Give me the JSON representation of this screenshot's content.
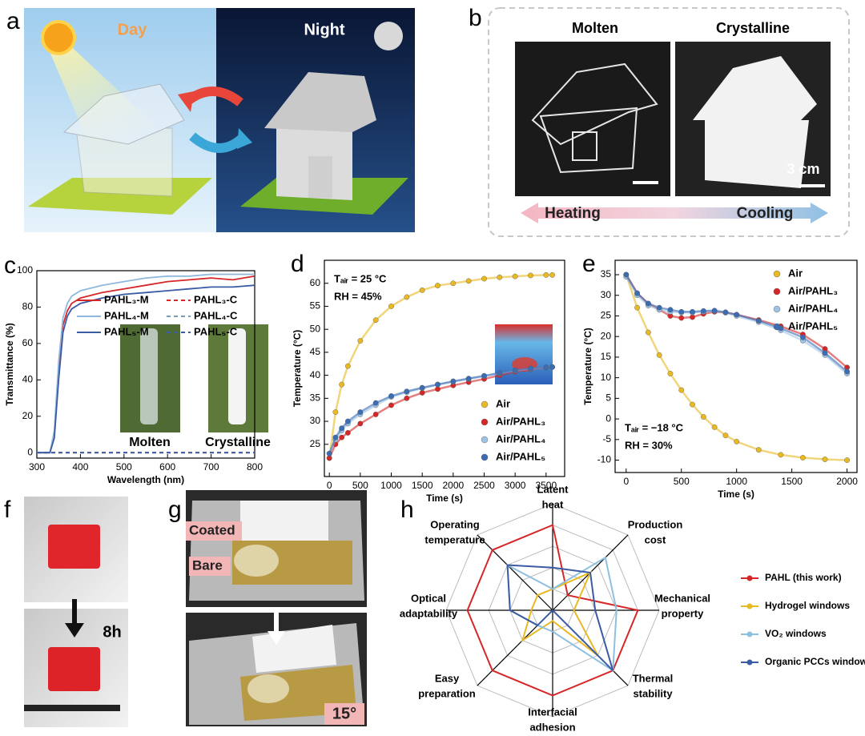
{
  "panels": {
    "a": {
      "letter": "a",
      "day": "Day",
      "night": "Night"
    },
    "b": {
      "letter": "b",
      "molten": "Molten",
      "crystalline": "Crystalline",
      "scale": "3 cm",
      "heating": "Heating",
      "cooling": "Cooling"
    },
    "c": {
      "letter": "c",
      "inset_molten": "Molten",
      "inset_crystalline": "Crystalline"
    },
    "d": {
      "letter": "d"
    },
    "e": {
      "letter": "e"
    },
    "f": {
      "letter": "f",
      "time": "8h"
    },
    "g": {
      "letter": "g",
      "coated": "Coated",
      "bare": "Bare",
      "angle": "15°"
    },
    "h": {
      "letter": "h"
    }
  },
  "chart_data": [
    {
      "type": "line",
      "x_label": "Wavelength (nm)",
      "y_label": "Transmittance (%)",
      "x": [
        300,
        330,
        340,
        350,
        360,
        370,
        380,
        400,
        450,
        500,
        550,
        600,
        650,
        700,
        750,
        800
      ],
      "series": [
        {
          "name": "PAHL₃-M",
          "color": "#d62728",
          "dash": false,
          "values": [
            0,
            0,
            10,
            45,
            70,
            78,
            82,
            85,
            88,
            90,
            92,
            94,
            95,
            96,
            95,
            97
          ]
        },
        {
          "name": "PAHL₃-C",
          "color": "#d62728",
          "dash": true,
          "values": [
            0,
            0,
            0,
            0,
            0,
            0,
            0,
            0,
            0,
            0,
            0,
            0,
            0,
            0,
            0,
            0
          ]
        },
        {
          "name": "PAHL₄-M",
          "color": "#8fb8dc",
          "dash": false,
          "values": [
            0,
            0,
            12,
            50,
            74,
            82,
            86,
            89,
            92,
            94,
            96,
            97,
            97,
            98,
            98,
            98
          ]
        },
        {
          "name": "PAHL₄-C",
          "color": "#7a9cb8",
          "dash": true,
          "values": [
            0,
            0,
            0,
            0,
            0,
            0,
            0,
            0,
            0,
            0,
            0,
            0,
            0,
            0,
            0,
            0
          ]
        },
        {
          "name": "PAHL₅-M",
          "color": "#3b5ba5",
          "dash": false,
          "values": [
            0,
            0,
            8,
            40,
            66,
            75,
            79,
            82,
            85,
            87,
            88,
            89,
            90,
            91,
            91,
            92
          ]
        },
        {
          "name": "PAHL₅-C",
          "color": "#3b5ba5",
          "dash": true,
          "values": [
            0,
            0,
            0,
            0,
            0,
            0,
            0,
            0,
            0,
            0,
            0,
            0,
            0,
            0,
            0,
            0
          ]
        }
      ],
      "xlim": [
        300,
        800
      ],
      "xticks": [
        300,
        400,
        500,
        600,
        700,
        800
      ],
      "ylim": [
        -3,
        100
      ],
      "yticks": [
        0,
        20,
        40,
        60,
        80,
        100
      ],
      "legend": "upper center"
    },
    {
      "type": "scatter",
      "x_label": "Time (s)",
      "y_label": "Temperature (°C)",
      "annotations": [
        "Tₐᵢᵣ = 25 °C",
        "RH = 45%"
      ],
      "annotation_corner": "upper left",
      "x": [
        0,
        100,
        200,
        300,
        500,
        750,
        1000,
        1250,
        1500,
        1750,
        2000,
        2250,
        2500,
        2750,
        3000,
        3250,
        3500,
        3600
      ],
      "series": [
        {
          "name": "Air",
          "color": "#e8b923",
          "values": [
            22,
            32,
            38,
            42,
            47.5,
            52,
            55,
            57,
            58.5,
            59.5,
            60,
            60.5,
            61,
            61.3,
            61.5,
            61.7,
            61.8,
            61.8
          ]
        },
        {
          "name": "Air/PAHL₃",
          "color": "#d62728",
          "values": [
            22,
            25,
            26.5,
            27.5,
            29.5,
            31.5,
            33.5,
            35,
            36.2,
            37,
            37.8,
            38.5,
            39.2,
            40,
            40.8,
            41.3,
            41.7,
            41.8
          ]
        },
        {
          "name": "Air/PAHL₄",
          "color": "#9cc3e6",
          "values": [
            23,
            26,
            28,
            29.5,
            31.5,
            33.5,
            35.3,
            36.3,
            37.2,
            38,
            38.6,
            39.2,
            39.8,
            40.4,
            41,
            41.4,
            41.7,
            41.8
          ]
        },
        {
          "name": "Air/PAHL₅",
          "color": "#3b6db5",
          "values": [
            23,
            26.5,
            28.5,
            30,
            32,
            34,
            35.5,
            36.5,
            37.3,
            38,
            38.7,
            39.3,
            39.9,
            40.5,
            41.1,
            41.5,
            41.7,
            41.8
          ]
        }
      ],
      "xlim": [
        -80,
        3800
      ],
      "xticks": [
        0,
        500,
        1000,
        1500,
        2000,
        2500,
        3000,
        3500
      ],
      "ylim": [
        18,
        65
      ],
      "yticks": [
        25,
        30,
        35,
        40,
        45,
        50,
        55,
        60
      ],
      "legend": "lower right"
    },
    {
      "type": "scatter",
      "x_label": "Time (s)",
      "y_label": "Temperature (°C)",
      "annotations": [
        "Tₐᵢᵣ = −18 °C",
        "RH = 30%"
      ],
      "annotation_corner": "lower left",
      "x": [
        0,
        100,
        200,
        300,
        400,
        500,
        600,
        700,
        800,
        900,
        1000,
        1200,
        1400,
        1600,
        1800,
        2000
      ],
      "series": [
        {
          "name": "Air",
          "color": "#e8b923",
          "values": [
            35,
            27,
            21,
            15.5,
            11,
            7,
            3.5,
            0.5,
            -2,
            -4,
            -5.5,
            -7.5,
            -8.7,
            -9.4,
            -9.8,
            -10
          ]
        },
        {
          "name": "Air/PAHL₃",
          "color": "#d62728",
          "values": [
            35,
            30.5,
            28,
            26.5,
            25,
            24.5,
            24.7,
            25.5,
            26,
            25.8,
            25.3,
            24,
            22.5,
            20.5,
            17,
            12.5
          ]
        },
        {
          "name": "Air/PAHL₄",
          "color": "#9cc3e6",
          "values": [
            34.5,
            30,
            27.5,
            26.5,
            26,
            25.8,
            25.8,
            26,
            26.2,
            25.8,
            25,
            23.5,
            21.5,
            19,
            15.5,
            11
          ]
        },
        {
          "name": "Air/PAHL₅",
          "color": "#3b6db5",
          "values": [
            35,
            30.5,
            28,
            27,
            26.5,
            26,
            26,
            26.2,
            26.3,
            25.9,
            25.3,
            23.8,
            22,
            19.8,
            16,
            11.5
          ]
        }
      ],
      "xlim": [
        -100,
        2090
      ],
      "xticks": [
        0,
        500,
        1000,
        1500,
        2000
      ],
      "ylim": [
        -13,
        38.5
      ],
      "yticks": [
        -10,
        -5,
        0,
        5,
        10,
        15,
        20,
        25,
        30,
        35
      ],
      "legend": "upper right"
    },
    {
      "type": "radar",
      "axes": [
        [
          "Latent",
          "heat"
        ],
        [
          "Production",
          "cost"
        ],
        [
          "Mechanical",
          "property"
        ],
        [
          "Thermal",
          "stability"
        ],
        [
          "Interfacial",
          "adhesion"
        ],
        [
          "Easy",
          "preparation"
        ],
        [
          "Optical",
          "adaptability"
        ],
        [
          "Operating",
          "temperature"
        ]
      ],
      "rlim": [
        0,
        5
      ],
      "series": [
        {
          "name": "PAHL (this work)",
          "color": "#d62728",
          "values": [
            4,
            1,
            4,
            4,
            4,
            4,
            4,
            4
          ]
        },
        {
          "name": "Hydrogel  windows",
          "color": "#e8b923",
          "values": [
            1,
            2.5,
            1,
            3,
            0.5,
            2,
            1,
            1
          ]
        },
        {
          "name": "VO₂ windows",
          "color": "#8fbfe0",
          "values": [
            1,
            3.5,
            3,
            4,
            1,
            1,
            2,
            3
          ]
        },
        {
          "name": "Organic PCCs windows",
          "color": "#3b5ba5",
          "values": [
            2,
            2.5,
            2,
            4,
            0,
            1,
            2,
            3
          ]
        }
      ]
    }
  ]
}
